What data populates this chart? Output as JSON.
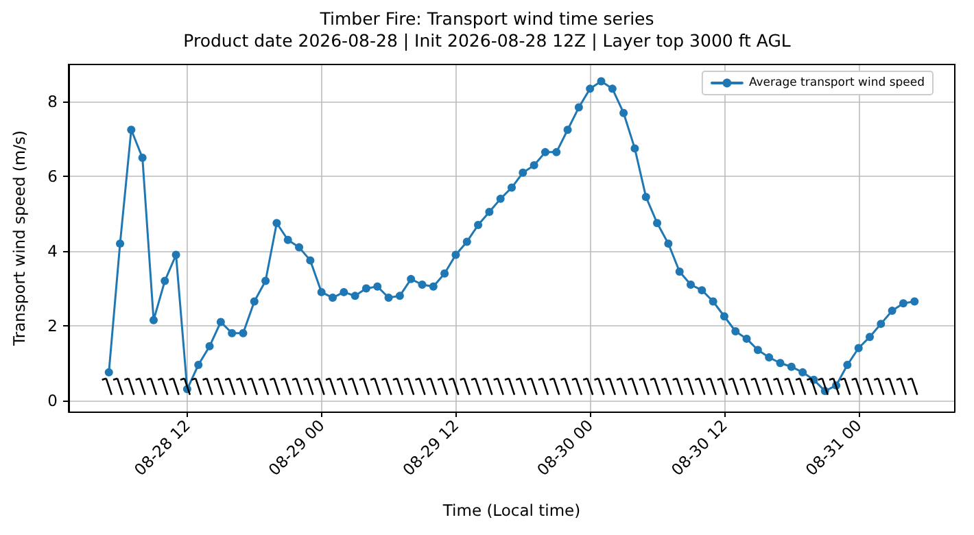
{
  "chart_data": {
    "type": "line",
    "title": "Timber Fire: Transport wind time series",
    "subtitle": "Product date 2026-08-28 | Init 2026-08-28 12Z | Layer top 3000 ft AGL",
    "xlabel": "Time (Local time)",
    "ylabel": "Transport wind speed (m/s)",
    "x": [
      "2026-08-28T05:00",
      "2026-08-28T06:00",
      "2026-08-28T07:00",
      "2026-08-28T08:00",
      "2026-08-28T09:00",
      "2026-08-28T10:00",
      "2026-08-28T11:00",
      "2026-08-28T12:00",
      "2026-08-28T13:00",
      "2026-08-28T14:00",
      "2026-08-28T15:00",
      "2026-08-28T16:00",
      "2026-08-28T17:00",
      "2026-08-28T18:00",
      "2026-08-28T19:00",
      "2026-08-28T20:00",
      "2026-08-28T21:00",
      "2026-08-28T22:00",
      "2026-08-28T23:00",
      "2026-08-29T00:00",
      "2026-08-29T01:00",
      "2026-08-29T02:00",
      "2026-08-29T03:00",
      "2026-08-29T04:00",
      "2026-08-29T05:00",
      "2026-08-29T06:00",
      "2026-08-29T07:00",
      "2026-08-29T08:00",
      "2026-08-29T09:00",
      "2026-08-29T10:00",
      "2026-08-29T11:00",
      "2026-08-29T12:00",
      "2026-08-29T13:00",
      "2026-08-29T14:00",
      "2026-08-29T15:00",
      "2026-08-29T16:00",
      "2026-08-29T17:00",
      "2026-08-29T18:00",
      "2026-08-29T19:00",
      "2026-08-29T20:00",
      "2026-08-29T21:00",
      "2026-08-29T22:00",
      "2026-08-29T23:00",
      "2026-08-30T00:00",
      "2026-08-30T01:00",
      "2026-08-30T02:00",
      "2026-08-30T03:00",
      "2026-08-30T04:00",
      "2026-08-30T05:00",
      "2026-08-30T06:00",
      "2026-08-30T07:00",
      "2026-08-30T08:00",
      "2026-08-30T09:00",
      "2026-08-30T10:00",
      "2026-08-30T11:00",
      "2026-08-30T12:00",
      "2026-08-30T13:00",
      "2026-08-30T14:00",
      "2026-08-30T15:00",
      "2026-08-30T16:00",
      "2026-08-30T17:00",
      "2026-08-30T18:00",
      "2026-08-30T19:00",
      "2026-08-30T20:00",
      "2026-08-30T21:00",
      "2026-08-30T22:00",
      "2026-08-30T23:00",
      "2026-08-31T00:00",
      "2026-08-31T01:00",
      "2026-08-31T02:00",
      "2026-08-31T03:00",
      "2026-08-31T04:00",
      "2026-08-31T05:00"
    ],
    "series": [
      {
        "name": "Average transport wind speed",
        "color": "#1f77b4",
        "values": [
          0.75,
          4.2,
          7.25,
          6.5,
          2.15,
          3.2,
          3.9,
          0.3,
          0.95,
          1.45,
          2.1,
          1.8,
          1.8,
          2.65,
          3.2,
          4.75,
          4.3,
          4.1,
          3.75,
          2.9,
          2.75,
          2.9,
          2.8,
          3.0,
          3.05,
          2.75,
          2.8,
          3.25,
          3.1,
          3.05,
          3.4,
          3.9,
          4.25,
          4.7,
          5.05,
          5.4,
          5.7,
          6.1,
          6.3,
          6.65,
          6.65,
          7.25,
          7.85,
          8.35,
          8.55,
          8.35,
          7.7,
          6.75,
          5.45,
          4.75,
          4.2,
          3.45,
          3.1,
          2.95,
          2.65,
          2.25,
          1.85,
          1.65,
          1.35,
          1.15,
          1.0,
          0.9,
          0.75,
          0.55,
          0.25,
          0.4,
          0.95,
          1.4,
          1.7,
          2.05,
          2.4,
          2.6,
          2.65
        ]
      }
    ],
    "xlim": [
      "2026-08-28T01:24",
      "2026-08-31T08:36"
    ],
    "xticks": [
      {
        "value": "2026-08-28T12:00",
        "label": "08-28 12"
      },
      {
        "value": "2026-08-29T00:00",
        "label": "08-29 00"
      },
      {
        "value": "2026-08-29T12:00",
        "label": "08-29 12"
      },
      {
        "value": "2026-08-30T00:00",
        "label": "08-30 00"
      },
      {
        "value": "2026-08-30T12:00",
        "label": "08-30 12"
      },
      {
        "value": "2026-08-31T00:00",
        "label": "08-31 00"
      }
    ],
    "ylim": [
      -0.3,
      9.0
    ],
    "yticks": [
      0,
      2,
      4,
      6,
      8
    ],
    "grid": true,
    "legend": "top right",
    "marker": "circle",
    "line_style": "solid"
  }
}
